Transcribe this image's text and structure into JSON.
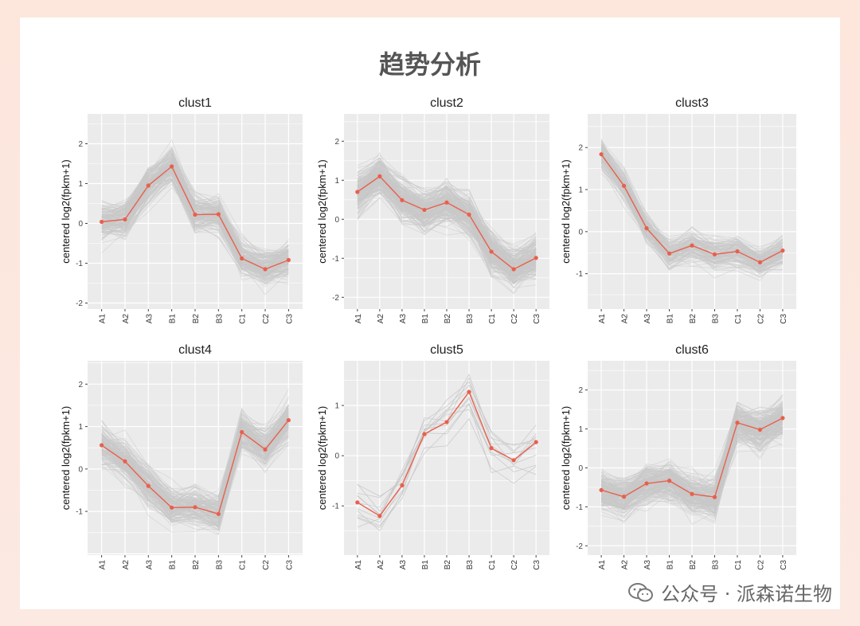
{
  "page": {
    "title": "趋势分析",
    "watermark": "公众号 · 派森诺生物",
    "watermark_icon": "wechat-icon"
  },
  "colors": {
    "mean_line": "#e8604c",
    "gene_lines": "#c8c8c8",
    "panel_bg": "#ebebeb",
    "grid": "#ffffff"
  },
  "chart_data": [
    {
      "type": "line",
      "title": "clust1",
      "ylabel": "centered log2(fpkm+1)",
      "categories": [
        "A1",
        "A2",
        "A3",
        "B1",
        "B2",
        "B3",
        "C1",
        "C2",
        "C3"
      ],
      "yticks": [
        -2,
        -1,
        0,
        1,
        2
      ],
      "ylim": [
        -2.15,
        2.75
      ],
      "mean": [
        0.04,
        0.1,
        0.95,
        1.43,
        0.22,
        0.23,
        -0.88,
        -1.15,
        -0.92
      ]
    },
    {
      "type": "line",
      "title": "clust2",
      "ylabel": "centered log2(fpkm+1)",
      "categories": [
        "A1",
        "A2",
        "A3",
        "B1",
        "B2",
        "B3",
        "C1",
        "C2",
        "C3"
      ],
      "yticks": [
        -2,
        -1,
        0,
        1,
        2
      ],
      "ylim": [
        -2.3,
        2.7
      ],
      "mean": [
        0.7,
        1.1,
        0.49,
        0.24,
        0.43,
        0.12,
        -0.83,
        -1.28,
        -0.99
      ]
    },
    {
      "type": "line",
      "title": "clust3",
      "ylabel": "centered log2(fpkm+1)",
      "categories": [
        "A1",
        "A2",
        "A3",
        "B1",
        "B2",
        "B3",
        "C1",
        "C2",
        "C3"
      ],
      "yticks": [
        -1,
        0,
        1,
        2
      ],
      "ylim": [
        -1.84,
        2.8
      ],
      "mean": [
        1.84,
        1.09,
        0.08,
        -0.52,
        -0.33,
        -0.54,
        -0.47,
        -0.73,
        -0.45
      ]
    },
    {
      "type": "line",
      "title": "clust4",
      "ylabel": "centered log2(fpkm+1)",
      "categories": [
        "A1",
        "A2",
        "A3",
        "B1",
        "B2",
        "B3",
        "C1",
        "C2",
        "C3"
      ],
      "yticks": [
        -1,
        0,
        1,
        2
      ],
      "ylim": [
        -2.03,
        2.55
      ],
      "mean": [
        0.56,
        0.18,
        -0.4,
        -0.91,
        -0.9,
        -1.06,
        0.87,
        0.46,
        1.15
      ]
    },
    {
      "type": "line",
      "title": "clust5",
      "ylabel": "centered log2(fpkm+1)",
      "categories": [
        "A1",
        "A2",
        "A3",
        "B1",
        "B2",
        "B3",
        "C1",
        "C2",
        "C3"
      ],
      "yticks": [
        -1,
        0,
        1
      ],
      "ylim": [
        -1.98,
        1.89
      ],
      "mean": [
        -0.93,
        -1.2,
        -0.59,
        0.43,
        0.67,
        1.27,
        0.15,
        -0.09,
        0.27
      ]
    },
    {
      "type": "line",
      "title": "clust6",
      "ylabel": "centered log2(fpkm+1)",
      "categories": [
        "A1",
        "A2",
        "A3",
        "B1",
        "B2",
        "B3",
        "C1",
        "C2",
        "C3"
      ],
      "yticks": [
        -2,
        -1,
        0,
        1,
        2
      ],
      "ylim": [
        -2.24,
        2.75
      ],
      "mean": [
        -0.57,
        -0.74,
        -0.4,
        -0.33,
        -0.67,
        -0.75,
        1.16,
        0.98,
        1.28
      ]
    }
  ]
}
